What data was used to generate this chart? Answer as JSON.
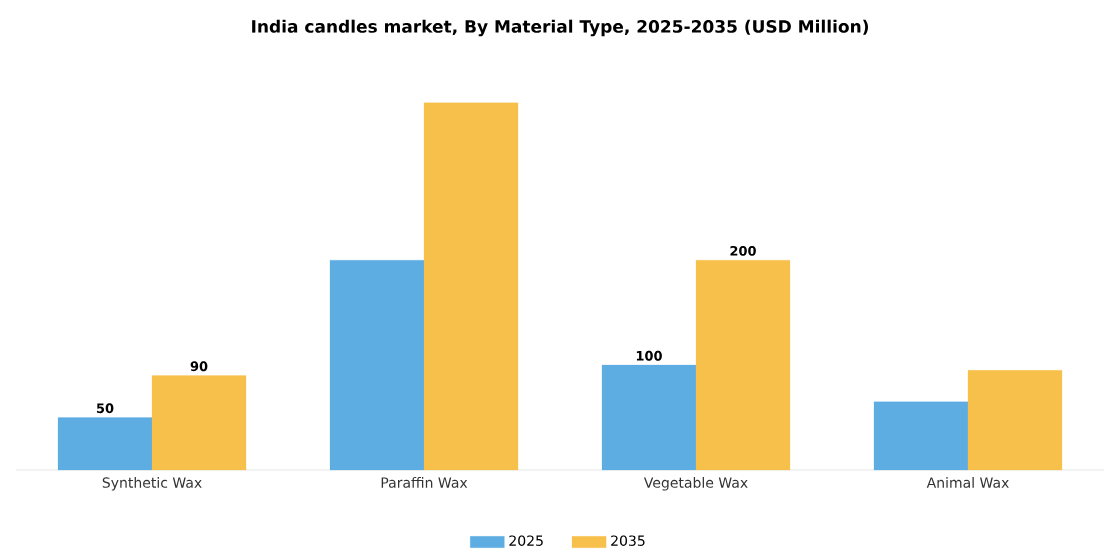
{
  "chart_data": {
    "type": "bar",
    "title": "India candles market, By Material Type, 2025-2035 (USD Million)",
    "categories": [
      "Synthetic Wax",
      "Paraffin Wax",
      "Vegetable Wax",
      "Animal Wax"
    ],
    "series": [
      {
        "name": "2025",
        "color": "#5dade2",
        "values": [
          50,
          200,
          100,
          65
        ],
        "value_labels": [
          "50",
          null,
          "100",
          null
        ]
      },
      {
        "name": "2035",
        "color": "#f7c04a",
        "values": [
          90,
          350,
          200,
          95
        ],
        "value_labels": [
          "90",
          null,
          "200",
          null
        ]
      }
    ],
    "legend": "bottom"
  }
}
